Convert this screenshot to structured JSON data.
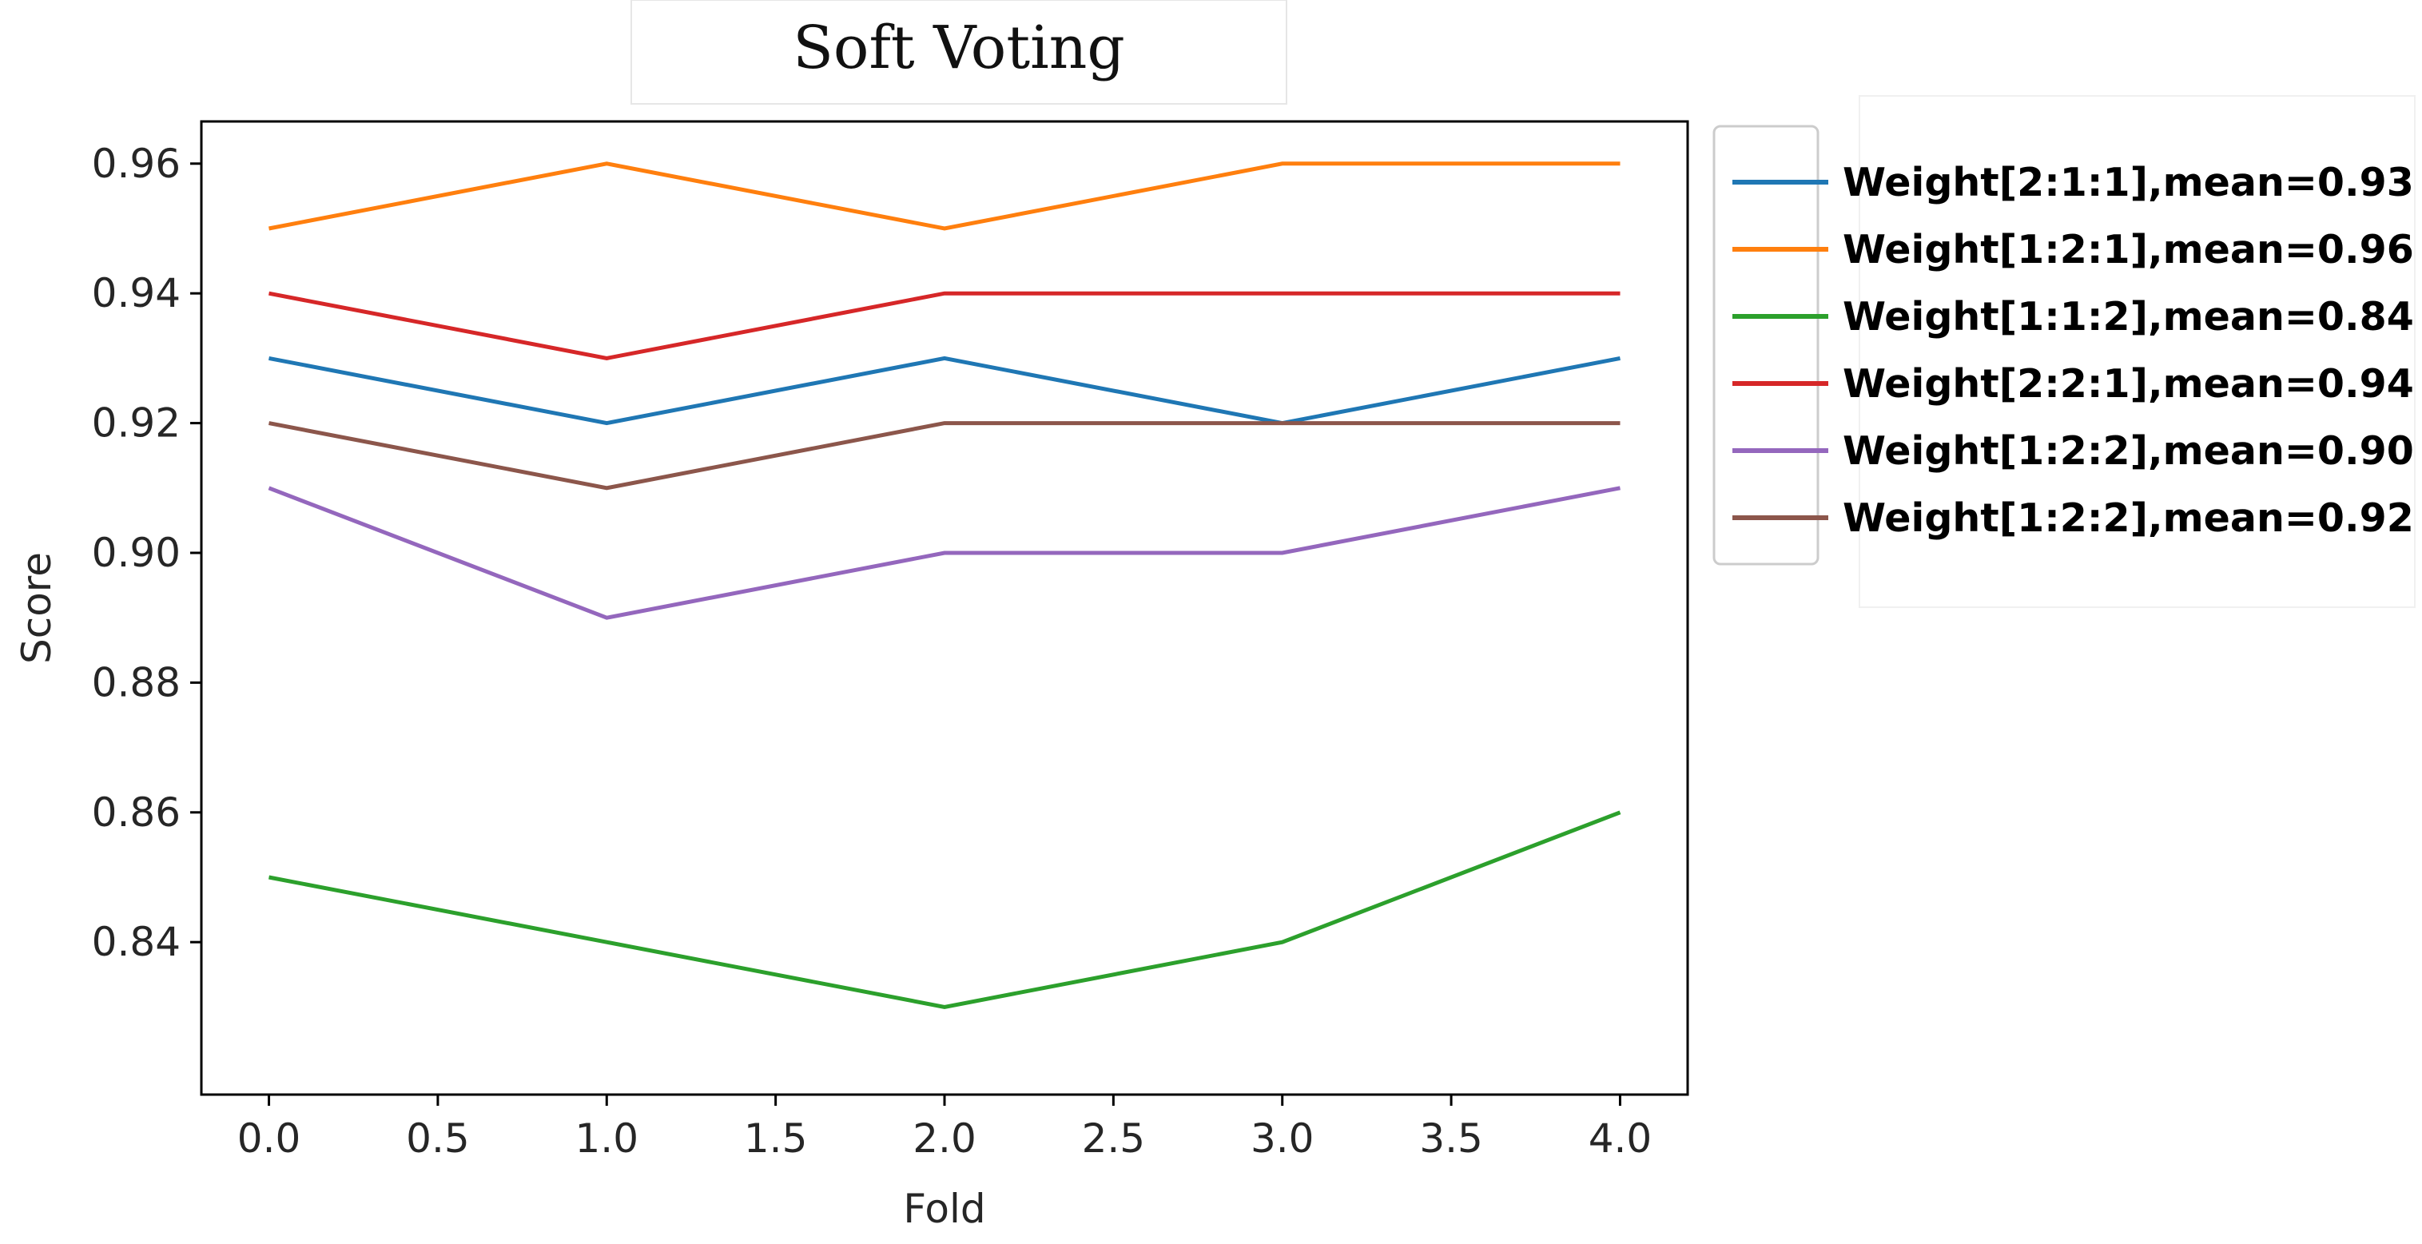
{
  "chart_data": {
    "type": "line",
    "title": "Soft Voting",
    "xlabel": "Fold",
    "ylabel": "Score",
    "x": [
      0,
      1,
      2,
      3,
      4
    ],
    "xlim": [
      -0.2,
      4.2
    ],
    "ylim": [
      0.8165,
      0.9665
    ],
    "xticks": [
      0.0,
      0.5,
      1.0,
      1.5,
      2.0,
      2.5,
      3.0,
      3.5,
      4.0
    ],
    "xtick_labels": [
      "0.0",
      "0.5",
      "1.0",
      "1.5",
      "2.0",
      "2.5",
      "3.0",
      "3.5",
      "4.0"
    ],
    "yticks": [
      0.84,
      0.86,
      0.88,
      0.9,
      0.92,
      0.94,
      0.96
    ],
    "ytick_labels": [
      "0.84",
      "0.86",
      "0.88",
      "0.90",
      "0.92",
      "0.94",
      "0.96"
    ],
    "grid": false,
    "legend_position": "outside-right-top",
    "series": [
      {
        "name": "Weight[2:1:1],mean=0.93",
        "color": "#1f77b4",
        "values": [
          0.93,
          0.92,
          0.93,
          0.92,
          0.93
        ]
      },
      {
        "name": "Weight[1:2:1],mean=0.96",
        "color": "#ff7f0e",
        "values": [
          0.95,
          0.96,
          0.95,
          0.96,
          0.96
        ]
      },
      {
        "name": "Weight[1:1:2],mean=0.84",
        "color": "#2ca02c",
        "values": [
          0.85,
          0.84,
          0.83,
          0.84,
          0.86
        ]
      },
      {
        "name": "Weight[2:2:1],mean=0.94",
        "color": "#d62728",
        "values": [
          0.94,
          0.93,
          0.94,
          0.94,
          0.94
        ]
      },
      {
        "name": "Weight[1:2:2],mean=0.90",
        "color": "#9467bd",
        "values": [
          0.91,
          0.89,
          0.9,
          0.9,
          0.91
        ]
      },
      {
        "name": "Weight[1:2:2],mean=0.92",
        "color": "#8c564b",
        "values": [
          0.92,
          0.91,
          0.92,
          0.92,
          0.92
        ]
      }
    ]
  }
}
